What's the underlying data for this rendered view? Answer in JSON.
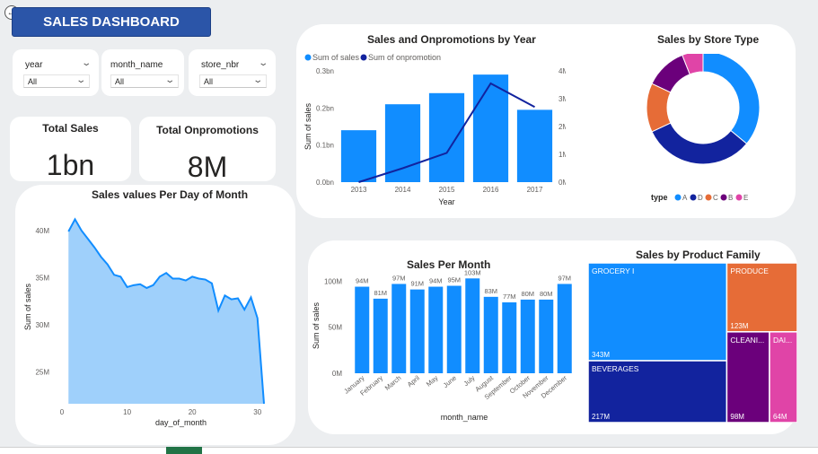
{
  "header": {
    "title": "SALES DASHBOARD",
    "back_icon": "back-arrow-icon"
  },
  "slicers": [
    {
      "label": "year",
      "value": "All"
    },
    {
      "label": "month_name",
      "value": "All"
    },
    {
      "label": "store_nbr",
      "value": "All"
    }
  ],
  "kpis": {
    "total_sales": {
      "label": "Total Sales",
      "value": "1bn"
    },
    "total_onpromotions": {
      "label": "Total Onpromotions",
      "value": "8M"
    }
  },
  "colors": {
    "bar": "#118dff",
    "line": "#12239e",
    "area_fill": "#9fd0fb",
    "area_line": "#118dff",
    "type_A": "#118dff",
    "type_D": "#12239e",
    "type_C": "#e66c37",
    "type_B": "#6b007b",
    "type_E": "#e044a7"
  },
  "chart_data": [
    {
      "id": "sales_onpromotions_by_year",
      "type": "bar",
      "title": "Sales and Onpromotions by Year",
      "categories": [
        "2013",
        "2014",
        "2015",
        "2016",
        "2017"
      ],
      "series": [
        {
          "name": "Sum of sales",
          "type": "bar",
          "axis": "left",
          "values": [
            0.14,
            0.21,
            0.24,
            0.29,
            0.195
          ]
        },
        {
          "name": "Sum of onpromotion",
          "type": "line",
          "axis": "right",
          "values": [
            0.0,
            0.5,
            1.05,
            3.55,
            2.7
          ]
        }
      ],
      "xlabel": "Year",
      "ylabel": "Sum of sales",
      "y2label": "Sum of onpromotion",
      "ylim": [
        0,
        0.3
      ],
      "y2lim": [
        0,
        4
      ],
      "yticks": [
        "0.0bn",
        "0.1bn",
        "0.2bn",
        "0.3bn"
      ],
      "y2ticks": [
        "0M",
        "1M",
        "2M",
        "3M",
        "4M"
      ],
      "legend_position": "top-left",
      "grid": false
    },
    {
      "id": "sales_by_store_type",
      "type": "pie",
      "title": "Sales by Store Type",
      "legend_title": "type",
      "categories": [
        "A",
        "D",
        "C",
        "B",
        "E"
      ],
      "values": [
        36,
        32,
        14,
        12,
        6
      ],
      "legend_position": "bottom"
    },
    {
      "id": "sales_per_day_of_month",
      "type": "area",
      "title": "Sales values Per Day of Month",
      "x": [
        1,
        2,
        3,
        4,
        5,
        6,
        7,
        8,
        9,
        10,
        11,
        12,
        13,
        14,
        15,
        16,
        17,
        18,
        19,
        20,
        21,
        22,
        23,
        24,
        25,
        26,
        27,
        28,
        29,
        30,
        31
      ],
      "values": [
        39.9,
        41.2,
        40.0,
        39.1,
        38.2,
        37.2,
        36.4,
        35.3,
        35.1,
        34.0,
        34.2,
        34.3,
        33.9,
        34.2,
        35.1,
        35.5,
        34.9,
        34.9,
        34.7,
        35.1,
        34.9,
        34.8,
        34.4,
        31.5,
        33.1,
        32.7,
        32.8,
        31.6,
        32.9,
        30.7,
        21.6
      ],
      "xlabel": "day_of_month",
      "ylabel": "Sum of sales",
      "xlim": [
        0,
        31
      ],
      "ylim": [
        21.6,
        42
      ],
      "xticks": [
        0,
        10,
        20,
        30
      ],
      "yticks": [
        25,
        30,
        35,
        40
      ],
      "ytick_labels": [
        "25M",
        "30M",
        "35M",
        "40M"
      ]
    },
    {
      "id": "sales_per_month",
      "type": "bar",
      "title": "Sales Per Month",
      "categories": [
        "January",
        "February",
        "March",
        "April",
        "May",
        "June",
        "July",
        "August",
        "September",
        "October",
        "November",
        "December"
      ],
      "values": [
        94,
        81,
        97,
        91,
        94,
        95,
        103,
        83,
        77,
        80,
        80,
        97
      ],
      "data_labels": [
        "94M",
        "81M",
        "97M",
        "91M",
        "94M",
        "95M",
        "103M",
        "83M",
        "77M",
        "80M",
        "80M",
        "97M"
      ],
      "xlabel": "month_name",
      "ylabel": "Sum of sales",
      "ylim": [
        0,
        115
      ],
      "yticks": [
        0,
        50,
        100
      ],
      "ytick_labels": [
        "0M",
        "50M",
        "100M"
      ]
    },
    {
      "id": "sales_by_product_family",
      "type": "treemap",
      "title": "Sales by Product Family",
      "categories": [
        "GROCERY I",
        "BEVERAGES",
        "PRODUCE",
        "CLEANI...",
        "DAI..."
      ],
      "values": [
        343,
        217,
        123,
        98,
        64
      ],
      "value_labels": [
        "343M",
        "217M",
        "123M",
        "98M",
        "64M"
      ]
    }
  ]
}
